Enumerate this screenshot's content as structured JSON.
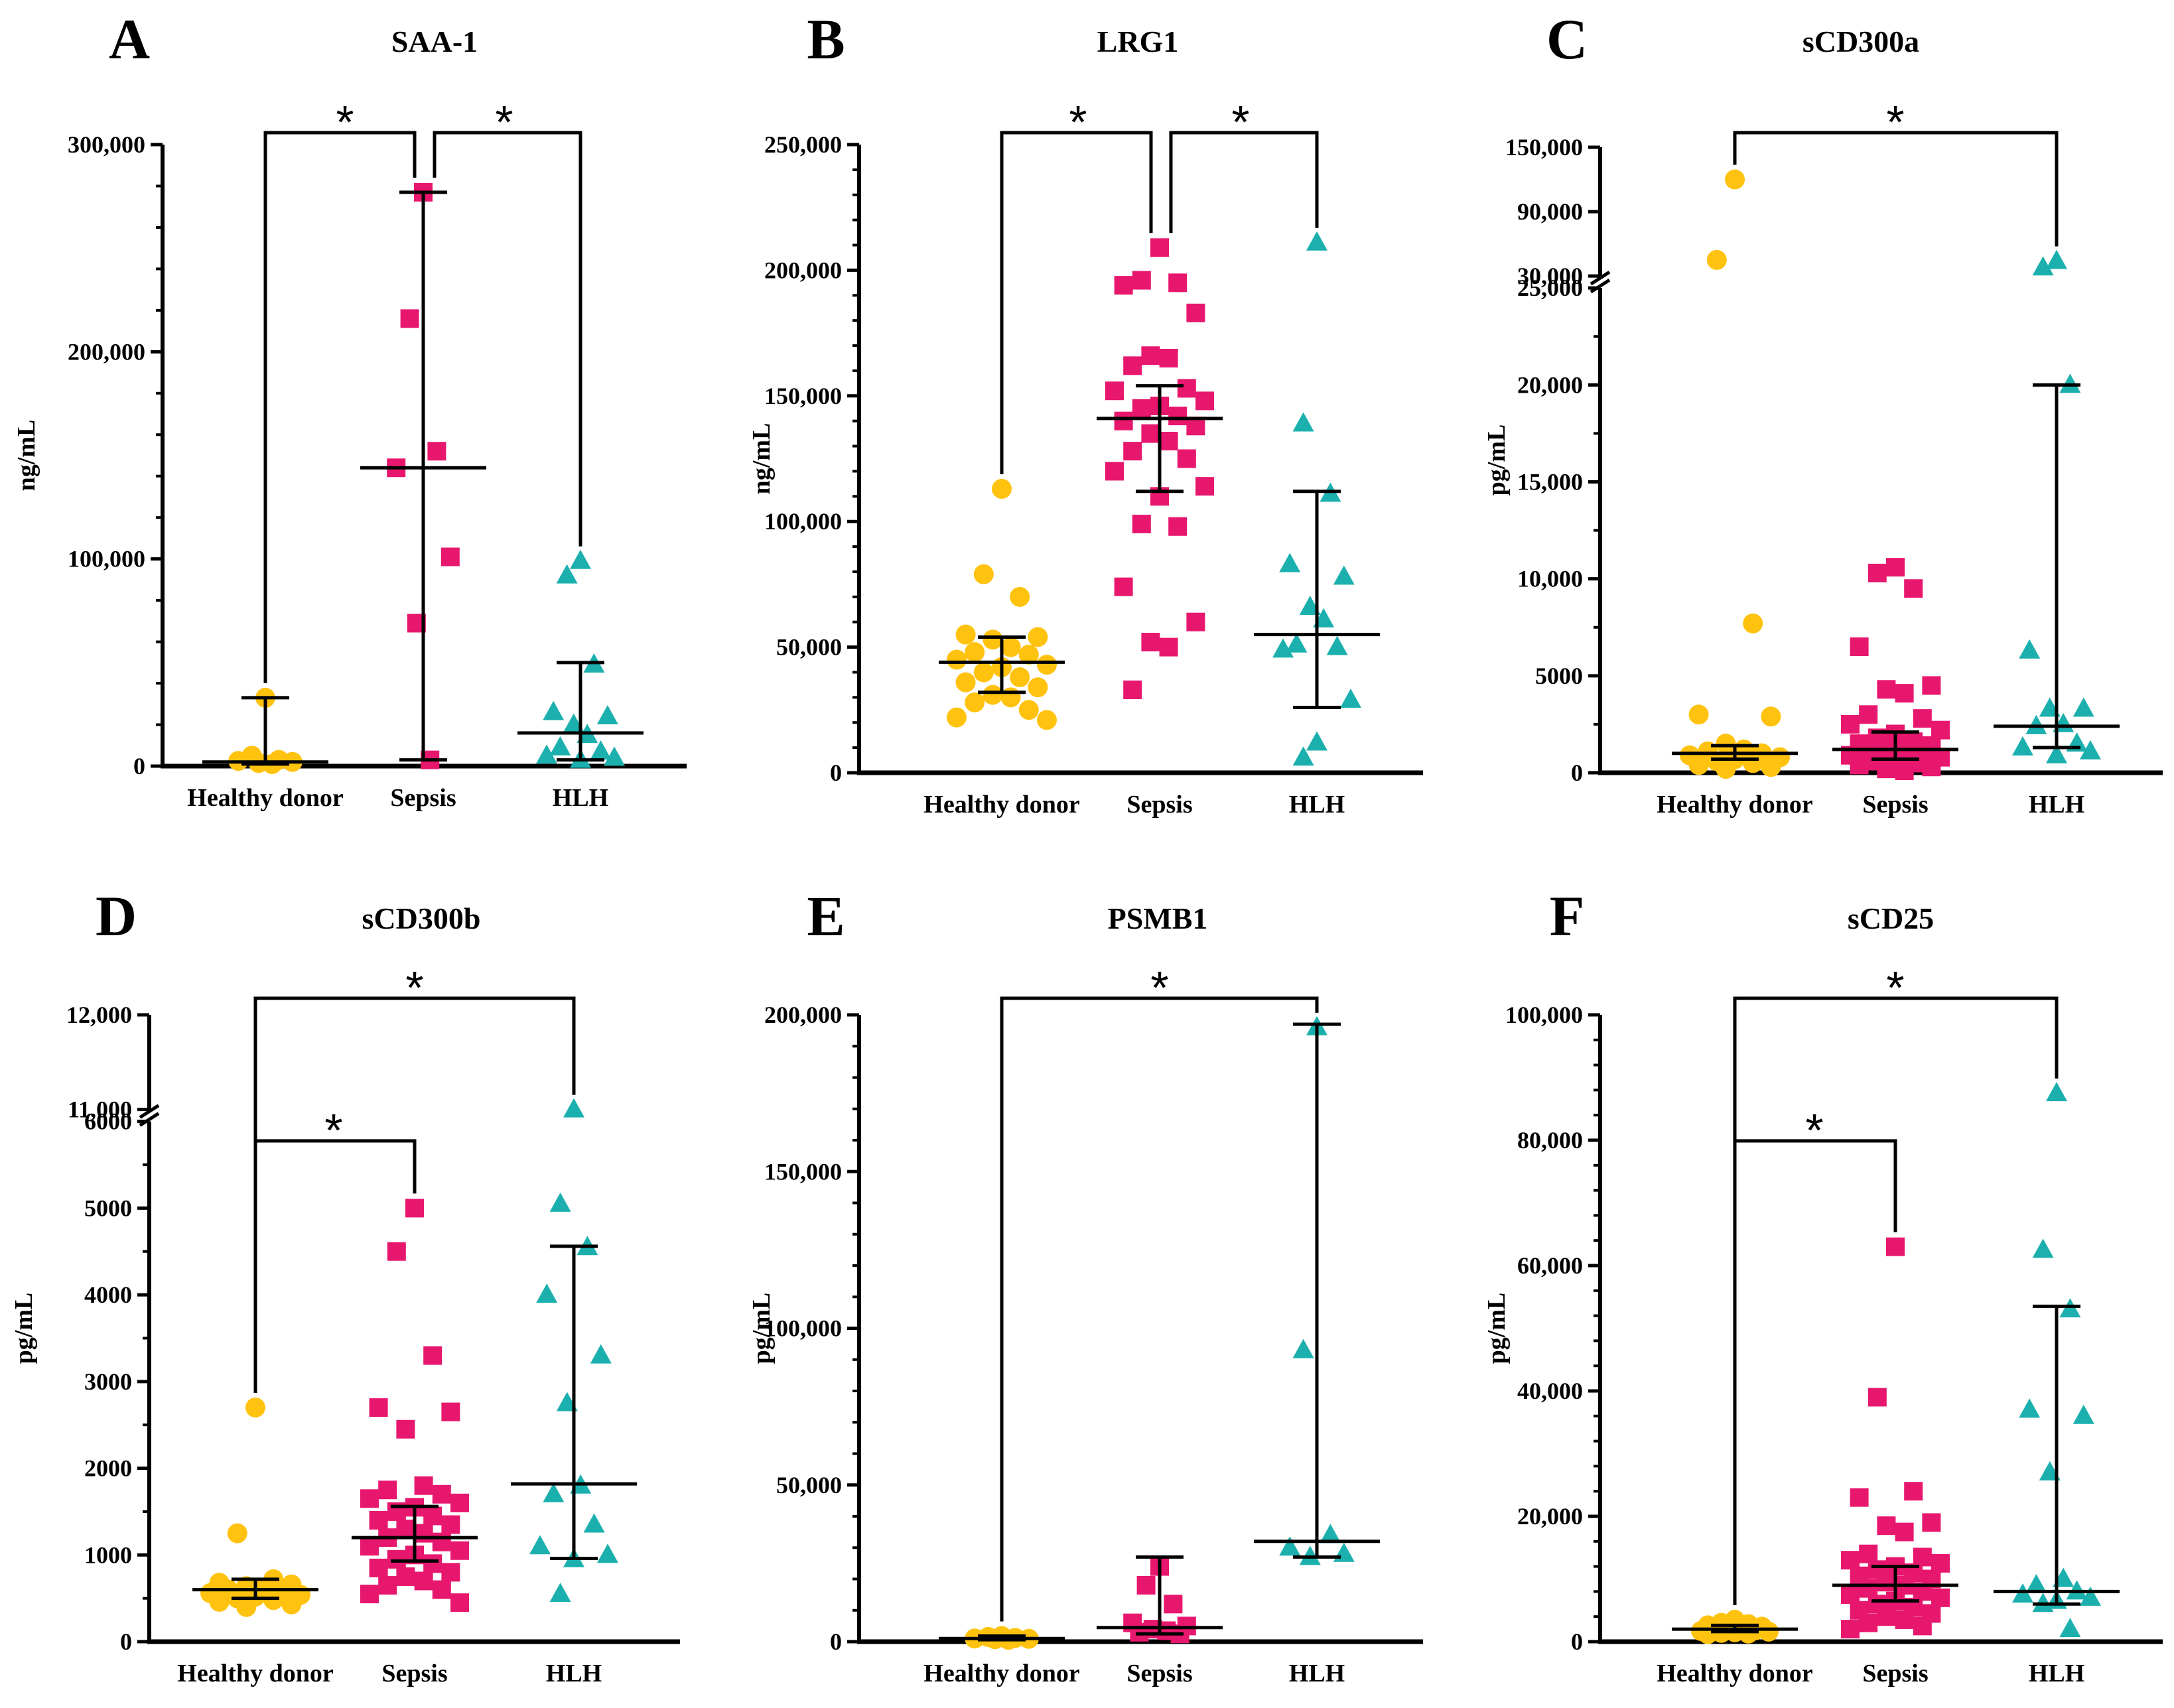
{
  "colors": {
    "healthy_donor": "#FFC20E",
    "sepsis": "#E8176E",
    "hlh": "#1BB0AE",
    "axis": "#000000"
  },
  "chart_data": [
    {
      "panel": "A",
      "title": "SAA-1",
      "type": "scatter",
      "ylabel": "ng/mL",
      "categories": [
        "Healthy donor",
        "Sepsis",
        "HLH"
      ],
      "ylim": [
        0,
        300000
      ],
      "yticks": [
        0,
        100000,
        200000,
        300000
      ],
      "ytick_labels": [
        "0",
        "100,000",
        "200,000",
        "300,000"
      ],
      "series": [
        {
          "name": "Healthy donor",
          "values": [
            33000,
            5000,
            3000,
            2500,
            2000,
            1500,
            1000
          ],
          "median": 2000,
          "q1": 1000,
          "q3": 33000
        },
        {
          "name": "Sepsis",
          "values": [
            277000,
            216000,
            152000,
            144000,
            101000,
            69000,
            3000
          ],
          "median": 144000,
          "q1": 3000,
          "q3": 277000
        },
        {
          "name": "HLH",
          "values": [
            99000,
            92000,
            49000,
            26000,
            24000,
            20000,
            15000,
            9000,
            7000,
            5000,
            4000,
            3000
          ],
          "median": 16000,
          "q1": 3000,
          "q3": 50000
        }
      ],
      "significance": [
        {
          "from": "Healthy donor",
          "to": "Sepsis",
          "label": "*"
        },
        {
          "from": "Sepsis",
          "to": "HLH",
          "label": "*"
        }
      ]
    },
    {
      "panel": "B",
      "title": "LRG1",
      "type": "scatter",
      "ylabel": "ng/mL",
      "categories": [
        "Healthy donor",
        "Sepsis",
        "HLH"
      ],
      "ylim": [
        0,
        250000
      ],
      "yticks": [
        0,
        50000,
        100000,
        150000,
        200000,
        250000
      ],
      "ytick_labels": [
        "0",
        "50,000",
        "100,000",
        "150,000",
        "200,000",
        "250,000"
      ],
      "series": [
        {
          "name": "Healthy donor",
          "values": [
            113000,
            79000,
            70000,
            55000,
            54000,
            53000,
            50000,
            48000,
            47000,
            45000,
            43000,
            42000,
            40000,
            38000,
            36000,
            34000,
            31000,
            30000,
            28000,
            25000,
            22000,
            21000
          ],
          "median": 44000,
          "q1": 32000,
          "q3": 54000
        },
        {
          "name": "Sepsis",
          "values": [
            209000,
            196000,
            195000,
            194000,
            183000,
            166000,
            165000,
            162000,
            153000,
            152000,
            148000,
            146000,
            145000,
            142000,
            140000,
            138000,
            135000,
            132000,
            128000,
            125000,
            120000,
            114000,
            110000,
            99000,
            98000,
            74000,
            60000,
            52000,
            50000,
            33000
          ],
          "median": 141000,
          "q1": 112000,
          "q3": 154000
        },
        {
          "name": "HLH",
          "values": [
            211000,
            139000,
            111000,
            83000,
            78000,
            66000,
            61000,
            51000,
            50000,
            49000,
            29000,
            12000,
            6000
          ],
          "median": 55000,
          "q1": 26000,
          "q3": 112000
        }
      ],
      "significance": [
        {
          "from": "Healthy donor",
          "to": "Sepsis",
          "label": "*"
        },
        {
          "from": "Sepsis",
          "to": "HLH",
          "label": "*"
        }
      ]
    },
    {
      "panel": "C",
      "title": "sCD300a",
      "type": "scatter",
      "ylabel": "pg/mL",
      "categories": [
        "Healthy donor",
        "Sepsis",
        "HLH"
      ],
      "ylim": [
        0,
        150000
      ],
      "broken_axis": {
        "lower": [
          0,
          25000
        ],
        "upper": [
          30000,
          150000
        ]
      },
      "yticks": [
        0,
        5000,
        10000,
        15000,
        20000,
        25000,
        30000,
        90000,
        150000
      ],
      "ytick_labels": [
        "0",
        "5000",
        "10,000",
        "15,000",
        "20,000",
        "25,000",
        "30,000",
        "90,000",
        "150,000"
      ],
      "series": [
        {
          "name": "Healthy donor",
          "values": [
            120000,
            45000,
            7700,
            3000,
            2900,
            1500,
            1200,
            1100,
            1000,
            900,
            800,
            700,
            600,
            500,
            400,
            300,
            200
          ],
          "median": 1000,
          "q1": 700,
          "q3": 1400
        },
        {
          "name": "Sepsis",
          "values": [
            10600,
            10300,
            9500,
            6500,
            4500,
            4300,
            4100,
            3000,
            2800,
            2500,
            2200,
            2000,
            1800,
            1600,
            1500,
            1400,
            1300,
            1200,
            1100,
            1000,
            900,
            800,
            700,
            600,
            500,
            400,
            300,
            200,
            100
          ],
          "median": 1200,
          "q1": 700,
          "q3": 2100
        },
        {
          "name": "HLH",
          "values": [
            44000,
            38000,
            20000,
            6300,
            3300,
            3300,
            2500,
            2400,
            1500,
            1300,
            1100,
            900
          ],
          "median": 2400,
          "q1": 1300,
          "q3": 20000
        }
      ],
      "significance": [
        {
          "from": "Healthy donor",
          "to": "HLH",
          "label": "*"
        }
      ]
    },
    {
      "panel": "D",
      "title": "sCD300b",
      "type": "scatter",
      "ylabel": "pg/mL",
      "categories": [
        "Healthy donor",
        "Sepsis",
        "HLH"
      ],
      "ylim": [
        0,
        12000
      ],
      "broken_axis": {
        "lower": [
          0,
          6000
        ],
        "upper": [
          11000,
          12000
        ]
      },
      "yticks": [
        0,
        1000,
        2000,
        3000,
        4000,
        5000,
        6000,
        11000,
        12000
      ],
      "ytick_labels": [
        "0",
        "1000",
        "2000",
        "3000",
        "4000",
        "5000",
        "6000",
        "11,000",
        "12,000"
      ],
      "series": [
        {
          "name": "Healthy donor",
          "values": [
            2700,
            1250,
            720,
            680,
            660,
            640,
            620,
            600,
            580,
            560,
            540,
            520,
            500,
            480,
            460,
            430,
            400
          ],
          "median": 600,
          "q1": 500,
          "q3": 720
        },
        {
          "name": "Sepsis",
          "values": [
            5000,
            4500,
            3300,
            2700,
            2650,
            2450,
            1800,
            1750,
            1700,
            1650,
            1600,
            1550,
            1500,
            1450,
            1400,
            1350,
            1300,
            1250,
            1200,
            1150,
            1100,
            1050,
            1000,
            950,
            900,
            850,
            800,
            750,
            700,
            650,
            600,
            550,
            450
          ],
          "median": 1200,
          "q1": 930,
          "q3": 1560
        },
        {
          "name": "HLH",
          "values": [
            11000,
            5050,
            4550,
            4000,
            3300,
            2750,
            1800,
            1700,
            1350,
            1100,
            1000,
            950,
            550
          ],
          "median": 1820,
          "q1": 960,
          "q3": 4560
        }
      ],
      "significance": [
        {
          "from": "Healthy donor",
          "to": "HLH",
          "label": "*"
        },
        {
          "from": "Healthy donor",
          "to": "Sepsis",
          "label": "*"
        }
      ]
    },
    {
      "panel": "E",
      "title": "PSMB1",
      "type": "scatter",
      "ylabel": "pg/mL",
      "categories": [
        "Healthy donor",
        "Sepsis",
        "HLH"
      ],
      "ylim": [
        0,
        200000
      ],
      "yticks": [
        0,
        50000,
        100000,
        150000,
        200000
      ],
      "ytick_labels": [
        "0",
        "50,000",
        "100,000",
        "150,000",
        "200,000"
      ],
      "series": [
        {
          "name": "Healthy donor",
          "values": [
            1800,
            1500,
            1200,
            1000,
            900,
            800,
            600
          ],
          "median": 1000,
          "q1": 600,
          "q3": 1800
        },
        {
          "name": "Sepsis",
          "values": [
            24000,
            18000,
            12000,
            6000,
            5000,
            4000,
            3500,
            3000,
            2500
          ],
          "median": 4500,
          "q1": 2500,
          "q3": 27000
        },
        {
          "name": "HLH",
          "values": [
            196000,
            93000,
            34000,
            30000,
            28000,
            27000
          ],
          "median": 32000,
          "q1": 27000,
          "q3": 197000
        }
      ],
      "significance": [
        {
          "from": "Healthy donor",
          "to": "HLH",
          "label": "*"
        }
      ]
    },
    {
      "panel": "F",
      "title": "sCD25",
      "type": "scatter",
      "ylabel": "pg/mL",
      "categories": [
        "Healthy donor",
        "Sepsis",
        "HLH"
      ],
      "ylim": [
        0,
        100000
      ],
      "yticks": [
        0,
        20000,
        40000,
        60000,
        80000,
        100000
      ],
      "ytick_labels": [
        "0",
        "20,000",
        "40,000",
        "60,000",
        "80,000",
        "100,000"
      ],
      "series": [
        {
          "name": "Healthy donor",
          "values": [
            3500,
            3000,
            2800,
            2600,
            2400,
            2200,
            2000,
            1900,
            1800,
            1700,
            1600,
            1500,
            1400,
            1300,
            1200
          ],
          "median": 2000,
          "q1": 1600,
          "q3": 2600
        },
        {
          "name": "Sepsis",
          "values": [
            63000,
            39000,
            24000,
            23000,
            19000,
            18500,
            17500,
            14000,
            13500,
            13000,
            12500,
            12000,
            11500,
            11000,
            10500,
            10000,
            9500,
            9000,
            8500,
            8000,
            7500,
            7000,
            6500,
            6000,
            5500,
            5000,
            4500,
            4000,
            3500,
            3000,
            2500,
            2000
          ],
          "median": 9000,
          "q1": 6500,
          "q3": 12000
        },
        {
          "name": "HLH",
          "values": [
            87500,
            62500,
            53000,
            37000,
            36000,
            27000,
            10000,
            9000,
            8000,
            7500,
            7000,
            6500,
            6000,
            2000
          ],
          "median": 8000,
          "q1": 6000,
          "q3": 53500
        }
      ],
      "significance": [
        {
          "from": "Healthy donor",
          "to": "HLH",
          "label": "*"
        },
        {
          "from": "Healthy donor",
          "to": "Sepsis",
          "label": "*"
        }
      ]
    }
  ]
}
